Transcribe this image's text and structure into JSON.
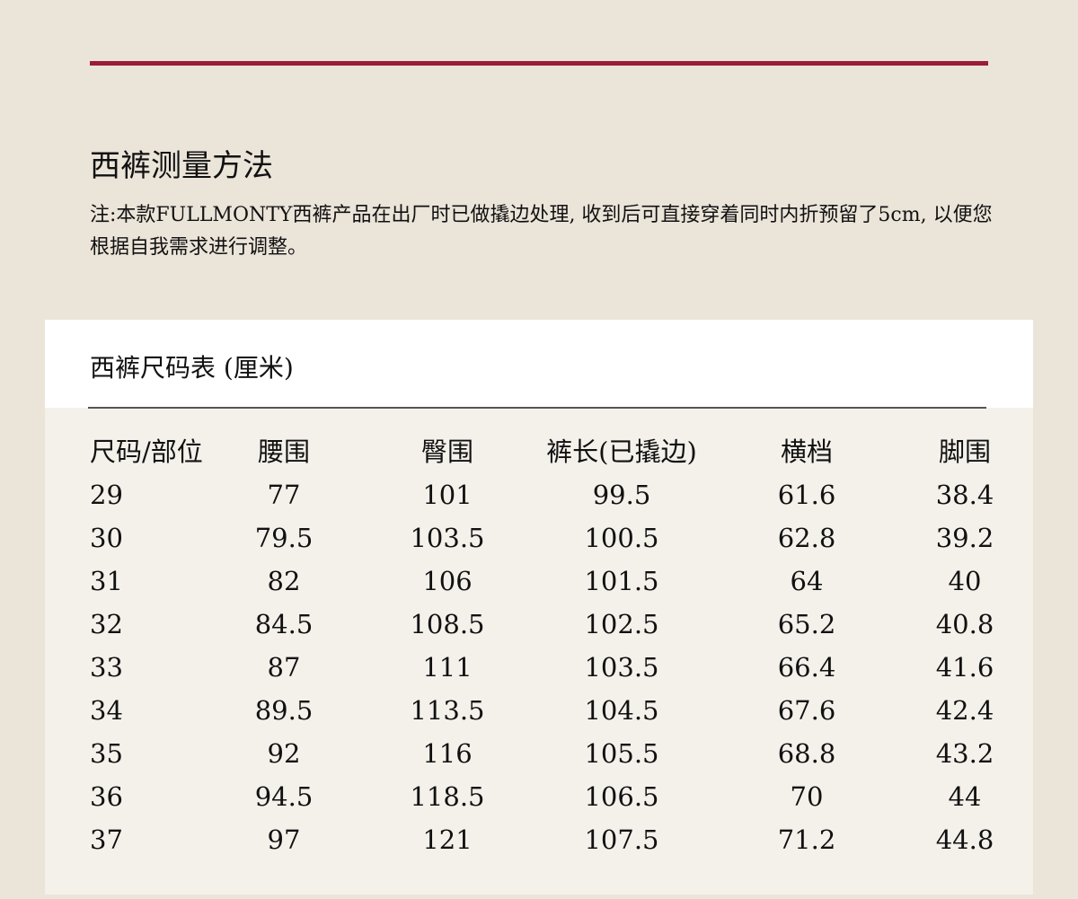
{
  "colors": {
    "accent": "#9b1b3a",
    "background": "#ebe4d9",
    "card": "#f4f0ea"
  },
  "header": {
    "title": "西裤测量方法",
    "note": "注:本款FULLMONTY西裤产品在出厂时已做撬边处理, 收到后可直接穿着同时内折预留了5cm, 以便您根据自我需求进行调整。"
  },
  "table": {
    "title": "西裤尺码表 (厘米)",
    "columns": [
      "尺码/部位",
      "腰围",
      "臀围",
      "裤长(已撬边)",
      "横档",
      "脚围"
    ],
    "rows": [
      [
        "29",
        "77",
        "101",
        "99.5",
        "61.6",
        "38.4"
      ],
      [
        "30",
        "79.5",
        "103.5",
        "100.5",
        "62.8",
        "39.2"
      ],
      [
        "31",
        "82",
        "106",
        "101.5",
        "64",
        "40"
      ],
      [
        "32",
        "84.5",
        "108.5",
        "102.5",
        "65.2",
        "40.8"
      ],
      [
        "33",
        "87",
        "111",
        "103.5",
        "66.4",
        "41.6"
      ],
      [
        "34",
        "89.5",
        "113.5",
        "104.5",
        "67.6",
        "42.4"
      ],
      [
        "35",
        "92",
        "116",
        "105.5",
        "68.8",
        "43.2"
      ],
      [
        "36",
        "94.5",
        "118.5",
        "106.5",
        "70",
        "44"
      ],
      [
        "37",
        "97",
        "121",
        "107.5",
        "71.2",
        "44.8"
      ]
    ]
  }
}
